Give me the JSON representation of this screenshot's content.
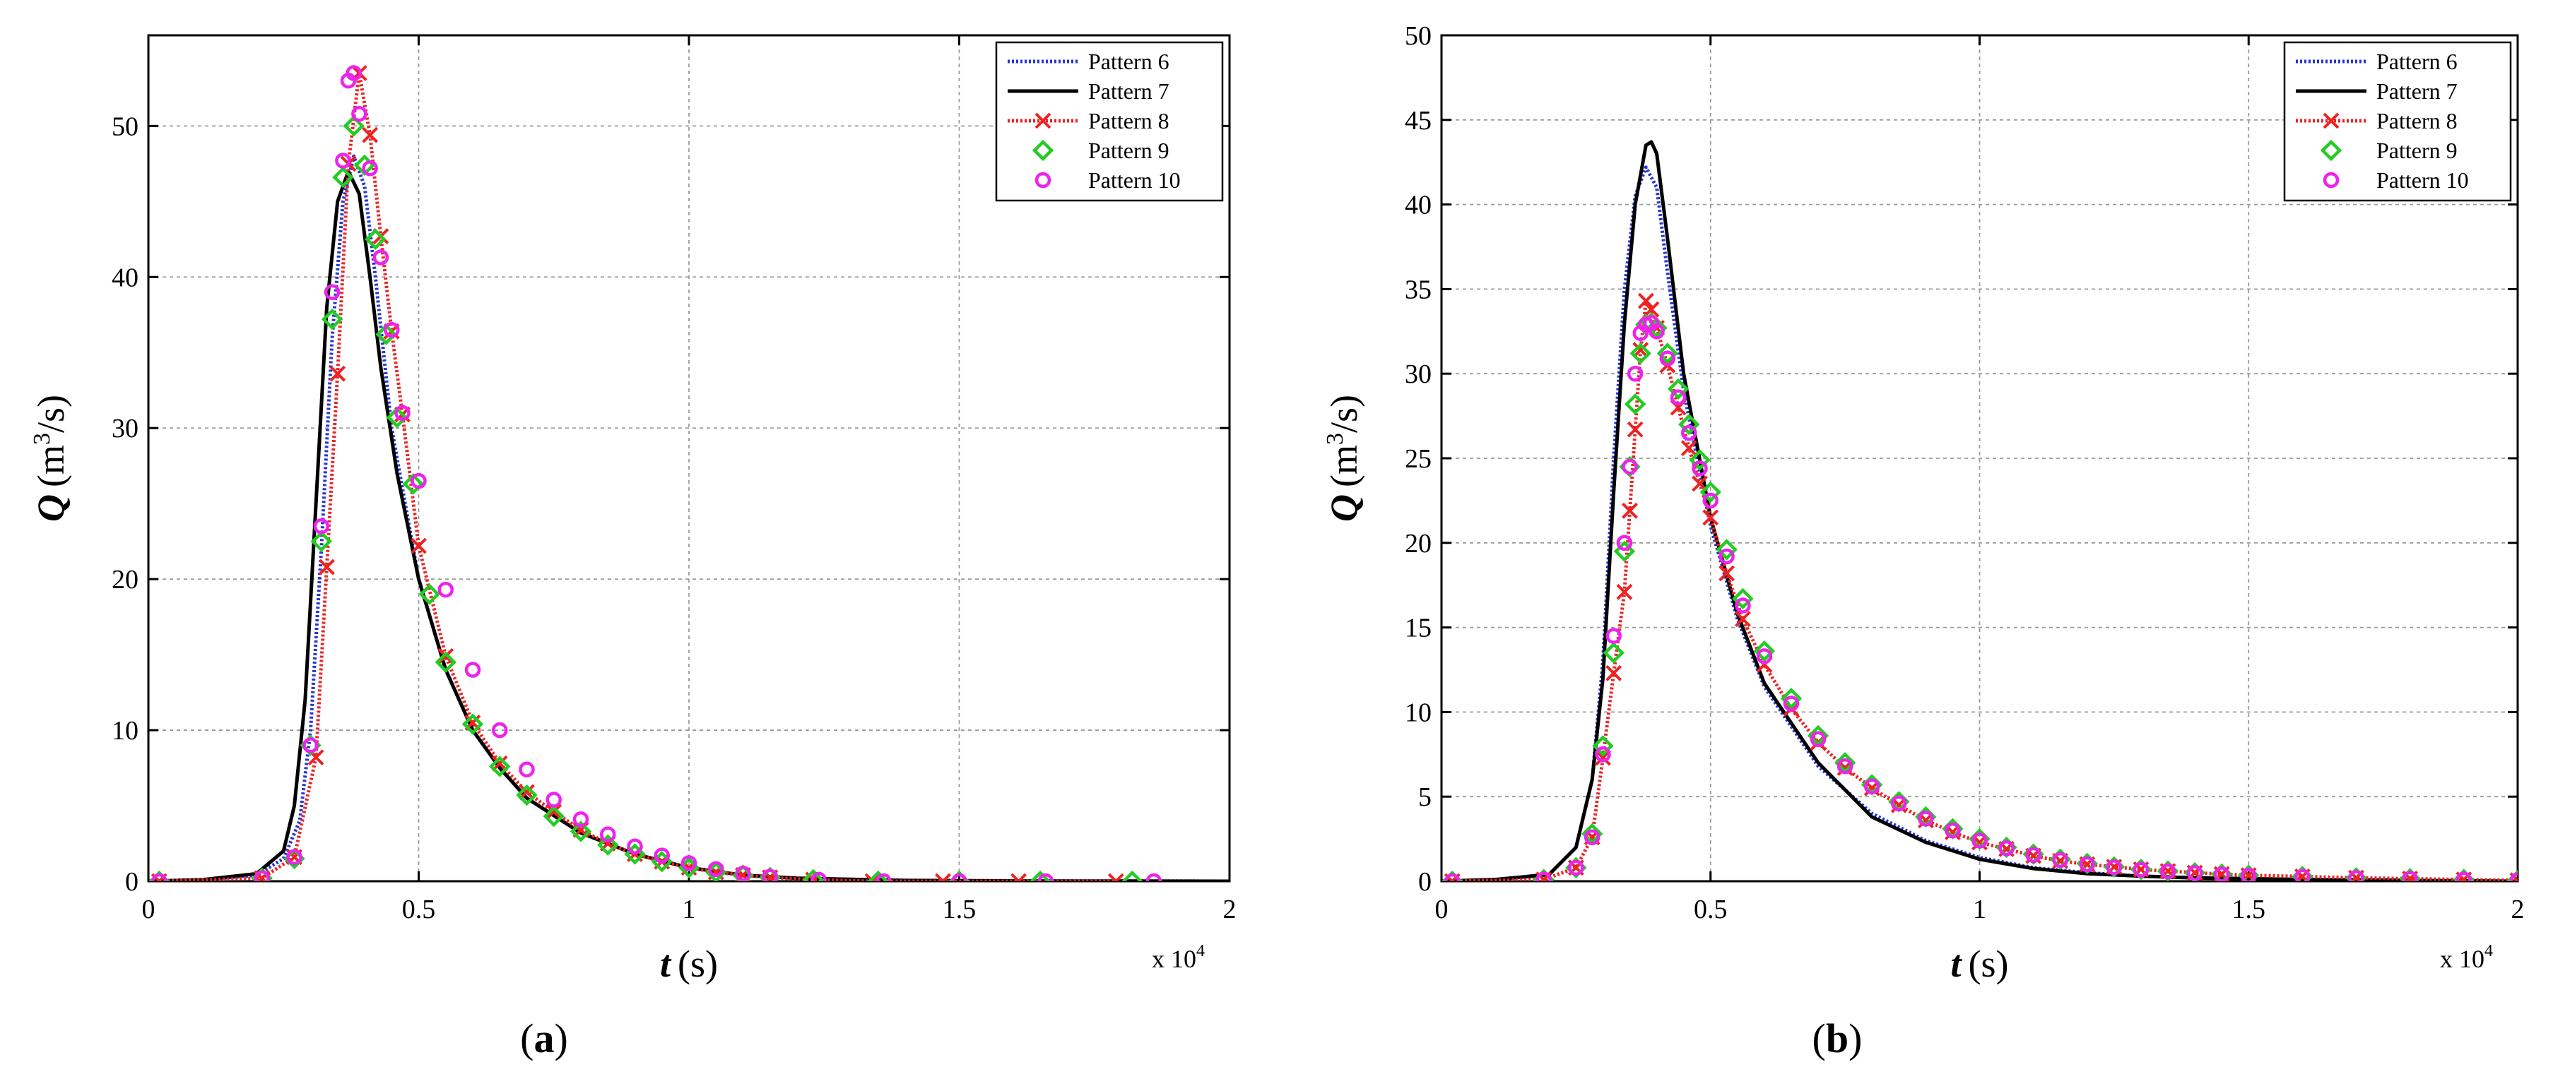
{
  "chart_data": [
    {
      "id": "a",
      "type": "line",
      "caption": "(a)",
      "xlabel": "t",
      "xlabel_unit": "(s)",
      "ylabel": "Q",
      "ylabel_unit": "(m",
      "ylabel_unit_sup": "3",
      "ylabel_unit_tail": "/s)",
      "x_multiplier": "x 10",
      "x_multiplier_exp": "4",
      "xlim": [
        0,
        2
      ],
      "ylim": [
        0,
        56
      ],
      "xticks": [
        0,
        0.5,
        1,
        1.5,
        2
      ],
      "xtick_labels": [
        "0",
        "0.5",
        "1",
        "1.5",
        "2"
      ],
      "yticks": [
        0,
        10,
        20,
        30,
        40,
        50
      ],
      "ytick_labels": [
        "0",
        "10",
        "20",
        "30",
        "40",
        "50"
      ],
      "grid": true,
      "legend_position": "top-right",
      "series": [
        {
          "name": "Pattern 6",
          "color": "#2233dd",
          "style": "dotted-line",
          "marker": "none",
          "x": [
            0,
            0.1,
            0.2,
            0.25,
            0.28,
            0.3,
            0.32,
            0.34,
            0.36,
            0.38,
            0.4,
            0.42,
            0.45,
            0.5,
            0.55,
            0.6,
            0.65,
            0.7,
            0.8,
            0.9,
            1.0,
            1.1,
            1.2,
            1.4,
            1.6,
            1.8,
            2.0
          ],
          "y": [
            0,
            0.1,
            0.4,
            1.5,
            4,
            10,
            22,
            36,
            45,
            48,
            46,
            40,
            30,
            20,
            14,
            10,
            7.5,
            5.5,
            3.2,
            1.8,
            0.9,
            0.4,
            0.2,
            0.05,
            0.02,
            0.01,
            0
          ]
        },
        {
          "name": "Pattern 7",
          "color": "#000000",
          "style": "solid",
          "marker": "none",
          "x": [
            0,
            0.1,
            0.2,
            0.25,
            0.27,
            0.29,
            0.31,
            0.33,
            0.35,
            0.37,
            0.39,
            0.41,
            0.43,
            0.46,
            0.5,
            0.55,
            0.6,
            0.65,
            0.7,
            0.8,
            0.9,
            1.0,
            1.1,
            1.2,
            1.4,
            1.6,
            1.8,
            2.0
          ],
          "y": [
            0,
            0.1,
            0.5,
            2,
            5,
            12,
            25,
            38,
            45,
            47,
            45.5,
            40,
            34,
            27,
            20,
            14,
            10,
            7.5,
            5.5,
            3.2,
            1.8,
            0.9,
            0.4,
            0.2,
            0.05,
            0.02,
            0.01,
            0
          ]
        },
        {
          "name": "Pattern 8",
          "color": "#ee2222",
          "style": "dotted-line",
          "marker": "x",
          "x": [
            0.02,
            0.21,
            0.27,
            0.31,
            0.33,
            0.35,
            0.37,
            0.39,
            0.41,
            0.43,
            0.45,
            0.47,
            0.5,
            0.55,
            0.6,
            0.65,
            0.7,
            0.75,
            0.8,
            0.85,
            0.9,
            0.95,
            1.0,
            1.05,
            1.1,
            1.15,
            1.23,
            1.34,
            1.47,
            1.61,
            1.79
          ],
          "y": [
            0,
            0.2,
            1.6,
            8.2,
            20.8,
            33.6,
            47.5,
            53.5,
            49.4,
            42.7,
            36.4,
            30.9,
            22.2,
            14.9,
            10.5,
            7.8,
            5.9,
            4.6,
            3.4,
            2.5,
            1.8,
            1.3,
            0.9,
            0.6,
            0.4,
            0.25,
            0.1,
            0,
            0,
            0,
            0
          ]
        },
        {
          "name": "Pattern 9",
          "color": "#22cc22",
          "style": "marker-only",
          "marker": "diamond",
          "x": [
            0.02,
            0.21,
            0.27,
            0.3,
            0.32,
            0.34,
            0.36,
            0.38,
            0.4,
            0.42,
            0.44,
            0.46,
            0.49,
            0.52,
            0.55,
            0.6,
            0.65,
            0.7,
            0.75,
            0.8,
            0.85,
            0.9,
            0.95,
            1.0,
            1.05,
            1.1,
            1.15,
            1.23,
            1.35,
            1.5,
            1.65,
            1.82
          ],
          "y": [
            0,
            0.2,
            1.5,
            9,
            22.5,
            37.2,
            46.6,
            50,
            47.4,
            42.5,
            36.2,
            30.7,
            26.3,
            19,
            14.5,
            10.4,
            7.6,
            5.7,
            4.3,
            3.3,
            2.4,
            1.8,
            1.3,
            0.9,
            0.6,
            0.4,
            0.25,
            0.1,
            0,
            0,
            0,
            0
          ]
        },
        {
          "name": "Pattern 10",
          "color": "#ee22ee",
          "style": "marker-only",
          "marker": "circle",
          "x": [
            0.02,
            0.21,
            0.27,
            0.3,
            0.32,
            0.34,
            0.36,
            0.37,
            0.38,
            0.39,
            0.41,
            0.43,
            0.45,
            0.47,
            0.5,
            0.55,
            0.6,
            0.65,
            0.7,
            0.75,
            0.8,
            0.85,
            0.9,
            0.95,
            1.0,
            1.05,
            1.1,
            1.15,
            1.24,
            1.36,
            1.5,
            1.66,
            1.86
          ],
          "y": [
            0,
            0.2,
            1.6,
            9,
            23.5,
            39,
            47.7,
            53,
            53.5,
            50.8,
            47.2,
            41.3,
            36.5,
            31,
            26.5,
            19.3,
            14,
            10,
            7.4,
            5.4,
            4.1,
            3.1,
            2.3,
            1.7,
            1.2,
            0.8,
            0.5,
            0.3,
            0.1,
            0,
            0,
            0,
            0
          ]
        }
      ]
    },
    {
      "id": "b",
      "type": "line",
      "caption": "(b)",
      "xlabel": "t",
      "xlabel_unit": "(s)",
      "ylabel": "Q",
      "ylabel_unit": "(m",
      "ylabel_unit_sup": "3",
      "ylabel_unit_tail": "/s)",
      "x_multiplier": "x 10",
      "x_multiplier_exp": "4",
      "xlim": [
        0,
        2
      ],
      "ylim": [
        0,
        50
      ],
      "xticks": [
        0,
        0.5,
        1,
        1.5,
        2
      ],
      "xtick_labels": [
        "0",
        "0.5",
        "1",
        "1.5",
        "2"
      ],
      "yticks": [
        0,
        5,
        10,
        15,
        20,
        25,
        30,
        35,
        40,
        45,
        50
      ],
      "ytick_labels": [
        "0",
        "5",
        "10",
        "15",
        "20",
        "25",
        "30",
        "35",
        "40",
        "45",
        "50"
      ],
      "grid": true,
      "legend_position": "top-right",
      "series": [
        {
          "name": "Pattern 6",
          "color": "#2233dd",
          "style": "dotted-line",
          "marker": "none",
          "x": [
            0,
            0.1,
            0.2,
            0.25,
            0.28,
            0.3,
            0.32,
            0.34,
            0.36,
            0.38,
            0.4,
            0.42,
            0.45,
            0.5,
            0.55,
            0.6,
            0.7,
            0.8,
            0.9,
            1.0,
            1.1,
            1.2,
            1.3,
            1.4,
            1.6,
            1.8,
            2.0
          ],
          "y": [
            0,
            0.1,
            0.4,
            2,
            6,
            13,
            25,
            35,
            40.5,
            42.2,
            41,
            36,
            29,
            21,
            15.5,
            11.5,
            6.8,
            4,
            2.4,
            1.4,
            0.8,
            0.5,
            0.3,
            0.2,
            0.1,
            0.05,
            0
          ]
        },
        {
          "name": "Pattern 7",
          "color": "#000000",
          "style": "solid",
          "marker": "none",
          "x": [
            0,
            0.1,
            0.2,
            0.25,
            0.28,
            0.3,
            0.32,
            0.34,
            0.36,
            0.38,
            0.39,
            0.4,
            0.42,
            0.45,
            0.5,
            0.55,
            0.6,
            0.7,
            0.8,
            0.9,
            1.0,
            1.1,
            1.2,
            1.3,
            1.4,
            1.6,
            1.8,
            2.0
          ],
          "y": [
            0,
            0.1,
            0.4,
            2,
            6,
            12,
            23,
            33,
            40,
            43.5,
            43.7,
            43,
            38,
            30,
            21.5,
            15.8,
            11.7,
            7,
            3.8,
            2.3,
            1.3,
            0.75,
            0.45,
            0.3,
            0.2,
            0.1,
            0.05,
            0
          ]
        },
        {
          "name": "Pattern 8",
          "color": "#ee2222",
          "style": "dotted-line",
          "marker": "x",
          "x": [
            0.02,
            0.19,
            0.25,
            0.28,
            0.3,
            0.32,
            0.34,
            0.35,
            0.36,
            0.37,
            0.38,
            0.39,
            0.4,
            0.42,
            0.44,
            0.46,
            0.48,
            0.5,
            0.53,
            0.56,
            0.6,
            0.65,
            0.7,
            0.75,
            0.8,
            0.85,
            0.9,
            0.95,
            1.0,
            1.05,
            1.1,
            1.15,
            1.2,
            1.25,
            1.3,
            1.35,
            1.4,
            1.45,
            1.5,
            1.6,
            1.7,
            1.8,
            1.9,
            2.0
          ],
          "y": [
            0,
            0.1,
            0.8,
            2.6,
            7.3,
            12.3,
            17.1,
            21.9,
            26.7,
            31.4,
            34.3,
            33.8,
            32.7,
            30.5,
            28,
            25.6,
            23.5,
            21.5,
            18.2,
            15.5,
            12.8,
            10.2,
            8.2,
            6.7,
            5.5,
            4.5,
            3.6,
            2.9,
            2.3,
            1.9,
            1.5,
            1.2,
            1,
            0.85,
            0.7,
            0.6,
            0.5,
            0.42,
            0.35,
            0.28,
            0.2,
            0.15,
            0.1,
            0.05
          ]
        },
        {
          "name": "Pattern 9",
          "color": "#22cc22",
          "style": "marker-only",
          "marker": "diamond",
          "x": [
            0.02,
            0.19,
            0.25,
            0.28,
            0.3,
            0.32,
            0.34,
            0.35,
            0.36,
            0.37,
            0.38,
            0.39,
            0.4,
            0.42,
            0.44,
            0.46,
            0.48,
            0.5,
            0.53,
            0.56,
            0.6,
            0.65,
            0.7,
            0.75,
            0.8,
            0.85,
            0.9,
            0.95,
            1.0,
            1.05,
            1.1,
            1.15,
            1.2,
            1.25,
            1.3,
            1.35,
            1.4,
            1.45,
            1.5,
            1.6,
            1.7,
            1.8,
            1.9,
            2.0
          ],
          "y": [
            0,
            0.1,
            0.8,
            2.8,
            8,
            13.5,
            19.5,
            24.5,
            28.2,
            31.2,
            32.9,
            33,
            32.7,
            31.2,
            29.1,
            27,
            24.9,
            23,
            19.6,
            16.7,
            13.6,
            10.8,
            8.6,
            7,
            5.7,
            4.7,
            3.8,
            3.1,
            2.5,
            2,
            1.6,
            1.3,
            1.05,
            0.85,
            0.7,
            0.6,
            0.5,
            0.42,
            0.35,
            0.28,
            0.2,
            0.15,
            0.1,
            0.05
          ]
        },
        {
          "name": "Pattern 10",
          "color": "#ee22ee",
          "style": "marker-only",
          "marker": "circle",
          "x": [
            0.02,
            0.19,
            0.25,
            0.28,
            0.3,
            0.32,
            0.34,
            0.35,
            0.36,
            0.37,
            0.38,
            0.39,
            0.4,
            0.42,
            0.44,
            0.46,
            0.48,
            0.5,
            0.53,
            0.56,
            0.6,
            0.65,
            0.7,
            0.75,
            0.8,
            0.85,
            0.9,
            0.95,
            1.0,
            1.05,
            1.1,
            1.15,
            1.2,
            1.25,
            1.3,
            1.35,
            1.4,
            1.45,
            1.5,
            1.6,
            1.7,
            1.8,
            1.9,
            2.0
          ],
          "y": [
            0,
            0.1,
            0.8,
            2.6,
            7.5,
            14.5,
            20,
            24.5,
            30,
            32.4,
            32.9,
            33,
            32.5,
            30.9,
            28.6,
            26.5,
            24.4,
            22.5,
            19.2,
            16.3,
            13.3,
            10.5,
            8.4,
            6.8,
            5.6,
            4.6,
            3.7,
            3,
            2.4,
            1.95,
            1.55,
            1.25,
            1,
            0.82,
            0.68,
            0.58,
            0.48,
            0.4,
            0.33,
            0.26,
            0.19,
            0.14,
            0.1,
            0.05
          ]
        }
      ]
    }
  ]
}
